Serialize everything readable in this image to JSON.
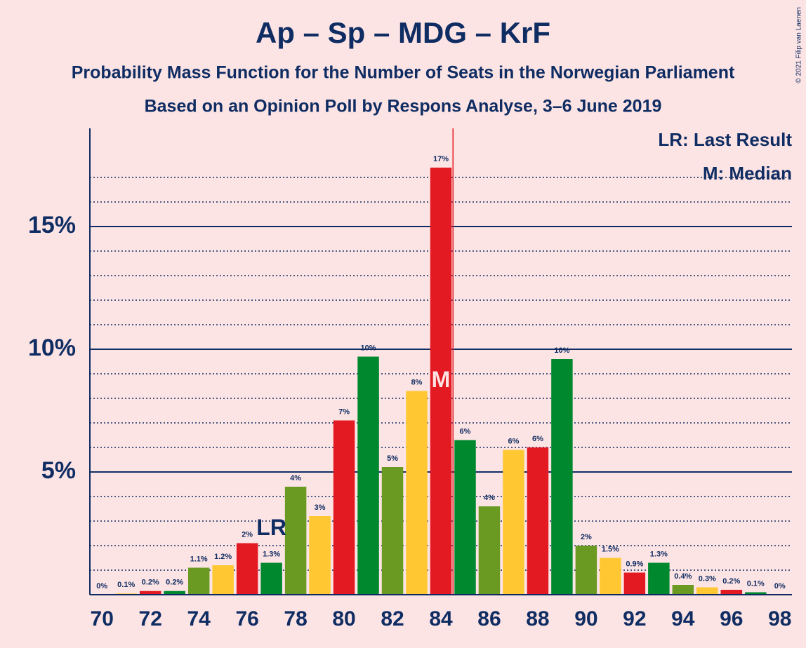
{
  "chart_data": {
    "type": "bar",
    "title": "Ap – Sp – MDG – KrF",
    "subtitle": "Probability Mass Function for the Number of Seats in the Norwegian Parliament",
    "subtitle2": "Based on an Opinion Poll by Respons Analyse, 3–6 June 2019",
    "copyright": "© 2021 Filip van Laenen",
    "legend": [
      "LR: Last Result",
      "M: Median"
    ],
    "last_result_label": "LR",
    "median_label": "M",
    "last_result": 77,
    "median": 84,
    "categories": [
      70,
      null,
      72,
      null,
      74,
      null,
      76,
      null,
      78,
      null,
      80,
      null,
      82,
      null,
      84,
      null,
      86,
      null,
      88,
      null,
      90,
      null,
      92,
      null,
      94,
      null,
      96,
      null,
      98
    ],
    "values": [
      0,
      0.05,
      0.15,
      0.15,
      1.1,
      1.2,
      2.1,
      1.3,
      4.4,
      3.2,
      7.1,
      9.7,
      5.2,
      8.3,
      17.4,
      6.3,
      3.6,
      5.9,
      6.0,
      9.6,
      2.0,
      1.5,
      0.9,
      1.3,
      0.4,
      0.3,
      0.2,
      0.1,
      0
    ],
    "value_labels": [
      "0%",
      "0.1%",
      "0.2%",
      "0.2%",
      "1.1%",
      "1.2%",
      "2%",
      "1.3%",
      "4%",
      "3%",
      "7%",
      "10%",
      "5%",
      "8%",
      "17%",
      "6%",
      "4%",
      "6%",
      "6%",
      "10%",
      "2%",
      "1.5%",
      "0.9%",
      "1.3%",
      "0.4%",
      "0.3%",
      "0.2%",
      "0.1%",
      "0%"
    ],
    "colors": [
      "#6b9a22",
      "#ffc832",
      "#e31a22",
      "#00882f",
      "#6b9a22",
      "#ffc832",
      "#e31a22",
      "#00882f",
      "#6b9a22",
      "#ffc832",
      "#e31a22",
      "#00882f",
      "#6b9a22",
      "#ffc832",
      "#e31a22",
      "#00882f",
      "#6b9a22",
      "#ffc832",
      "#e31a22",
      "#00882f",
      "#6b9a22",
      "#ffc832",
      "#e31a22",
      "#00882f",
      "#6b9a22",
      "#ffc832",
      "#e31a22",
      "#00882f",
      "#6b9a22"
    ],
    "ylim": [
      0,
      19
    ],
    "yticks": [
      {
        "value": 5,
        "label": "5%"
      },
      {
        "value": 10,
        "label": "10%"
      },
      {
        "value": 15,
        "label": "15%"
      }
    ],
    "minor_yticks": [
      1,
      2,
      3,
      4,
      6,
      7,
      8,
      9,
      11,
      12,
      13,
      14,
      16,
      17
    ],
    "grid": true
  }
}
